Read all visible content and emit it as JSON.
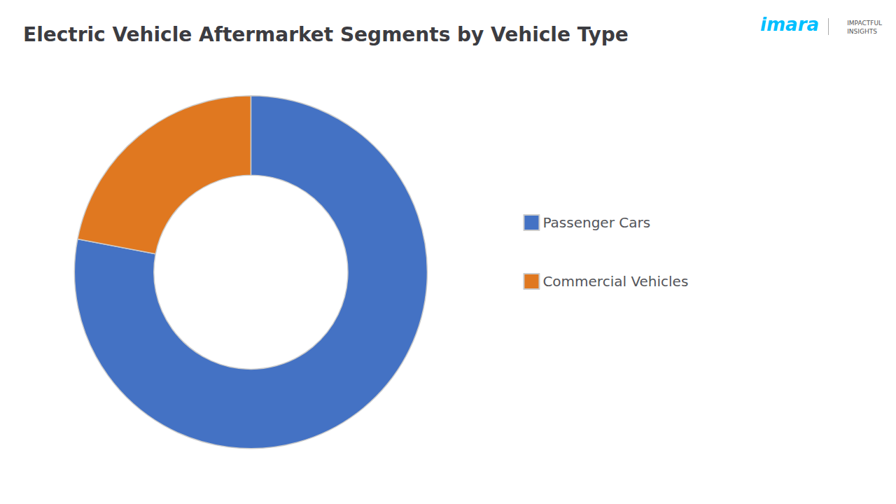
{
  "chart_data": {
    "type": "donut",
    "title": "Electric Vehicle Aftermarket Segments by Vehicle Type",
    "categories": [
      "Passenger Cars",
      "Commercial Vehicles"
    ],
    "values": [
      78,
      22
    ],
    "colors": [
      "#4472C4",
      "#E07820"
    ],
    "legend": "right",
    "annotations": [
      "imara",
      "IMPACTFUL\nINSIGHTS"
    ]
  }
}
